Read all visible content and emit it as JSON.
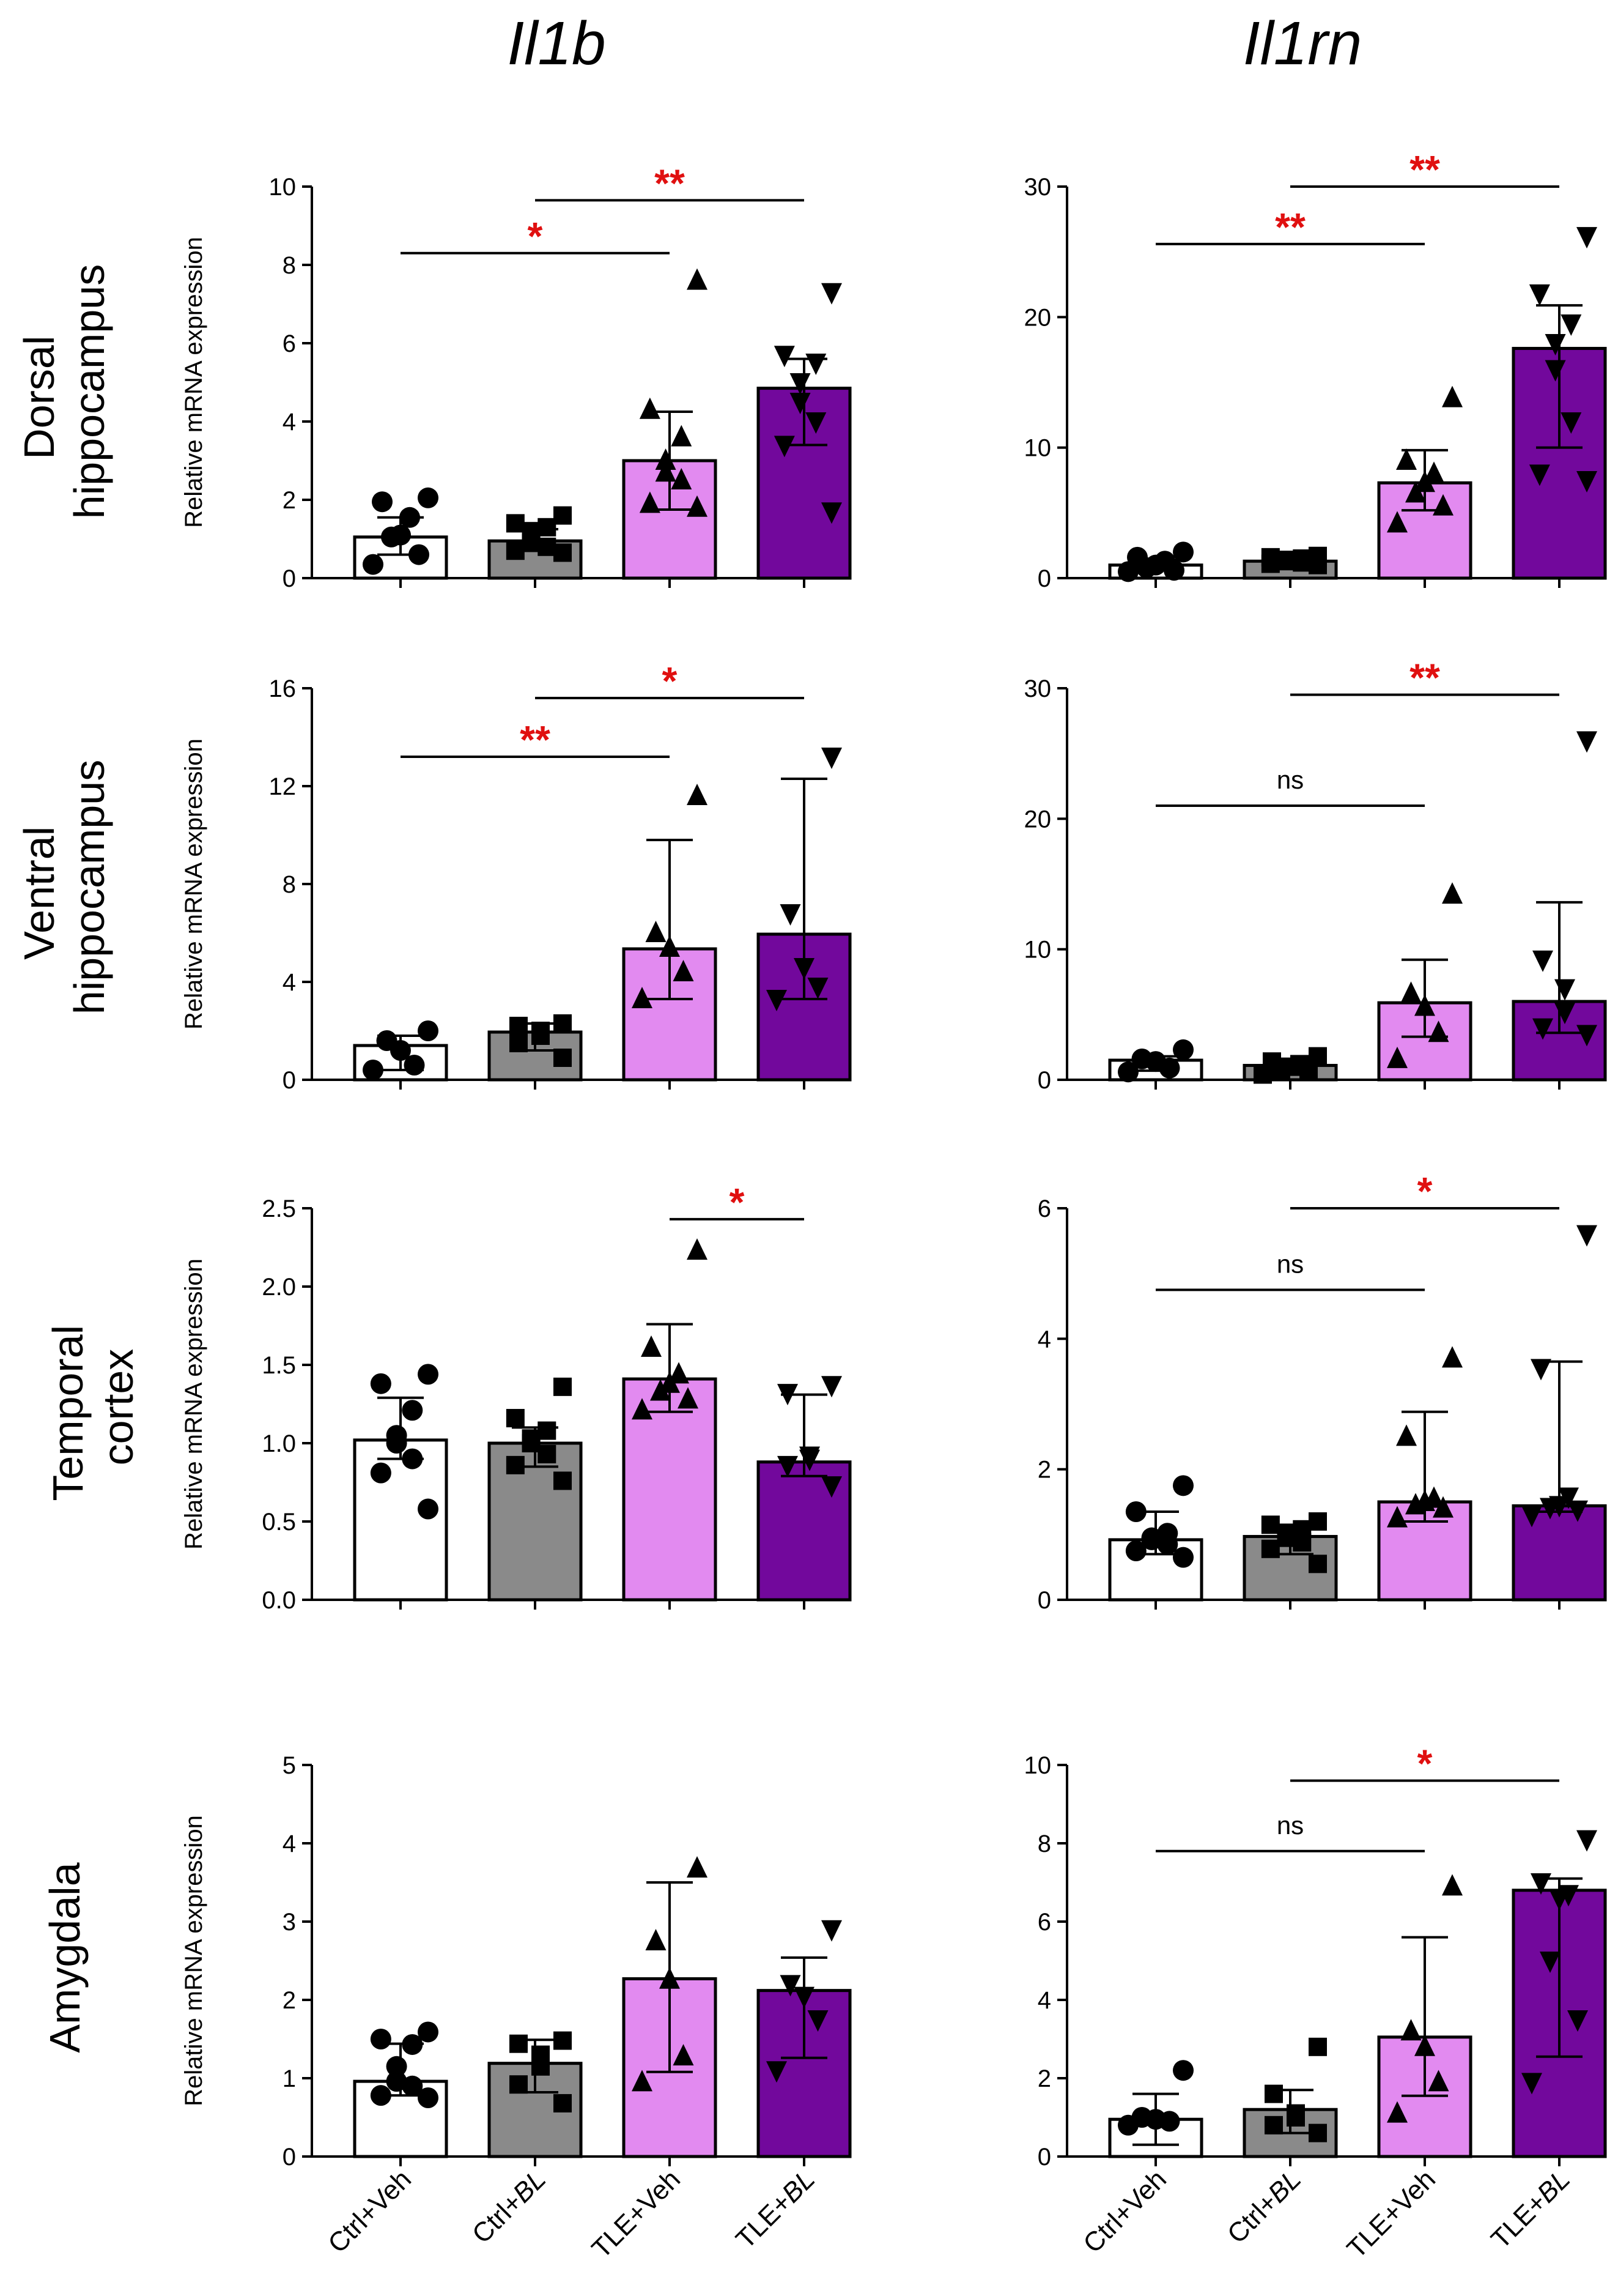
{
  "column_titles": [
    "Il1b",
    "Il1rn"
  ],
  "row_labels": [
    [
      "Dorsal",
      "hippocampus"
    ],
    [
      "Ventral",
      "hippocampus"
    ],
    [
      "Temporal",
      "cortex"
    ],
    [
      "Amygdala"
    ]
  ],
  "x_categories": [
    {
      "prefix": "Ctrl+",
      "suffix": "Veh",
      "italic_suffix": false
    },
    {
      "prefix": "Ctrl+",
      "suffix": "BL",
      "italic_suffix": true
    },
    {
      "prefix": "TLE+",
      "suffix": "Veh",
      "italic_suffix": false
    },
    {
      "prefix": "TLE+",
      "suffix": "BL",
      "italic_suffix": true
    }
  ],
  "colors": {
    "bars": [
      "#ffffff",
      "#8a8a8a",
      "#e28af0",
      "#72089c"
    ],
    "significance": "#e01010",
    "axis": "#000000"
  },
  "markers": [
    "circle",
    "square",
    "triangle-up",
    "triangle-down"
  ],
  "chart_data": [
    {
      "type": "bar",
      "row": 0,
      "col": 0,
      "gene": "Il1b",
      "region": "Dorsal hippocampus",
      "ylabel": "Relative mRNA expression",
      "ylim": [
        0,
        10
      ],
      "yticks": [
        0,
        2,
        4,
        6,
        8,
        10
      ],
      "ytick_labels": [
        "0",
        "2",
        "4",
        "6",
        "8",
        "10"
      ],
      "categories": [
        "Ctrl+Veh",
        "Ctrl+BL",
        "TLE+Veh",
        "TLE+BL"
      ],
      "means": [
        1.05,
        0.95,
        3.0,
        4.85
      ],
      "err_low": [
        0.6,
        0.7,
        1.75,
        3.4
      ],
      "err_high": [
        1.55,
        1.25,
        4.25,
        5.6
      ],
      "points": [
        [
          2.05,
          1.95,
          1.55,
          1.1,
          1.05,
          0.6,
          0.35
        ],
        [
          1.6,
          1.4,
          1.3,
          1.2,
          0.9,
          0.8,
          0.7,
          0.65
        ],
        [
          7.6,
          4.3,
          3.6,
          3.0,
          2.7,
          2.5,
          1.9,
          1.8
        ],
        [
          7.3,
          5.7,
          5.5,
          5.0,
          4.5,
          4.0,
          3.4,
          1.7
        ]
      ],
      "comparisons": [
        {
          "from": 0,
          "to": 2,
          "level": 8.3,
          "label": "*"
        },
        {
          "from": 1,
          "to": 3,
          "level": 9.65,
          "label": "**"
        }
      ]
    },
    {
      "type": "bar",
      "row": 0,
      "col": 1,
      "gene": "Il1rn",
      "region": "Dorsal hippocampus",
      "ylabel": "",
      "ylim": [
        0,
        30
      ],
      "yticks": [
        0,
        10,
        20,
        30
      ],
      "ytick_labels": [
        "0",
        "10",
        "20",
        "30"
      ],
      "categories": [
        "Ctrl+Veh",
        "Ctrl+BL",
        "TLE+Veh",
        "TLE+BL"
      ],
      "means": [
        1.0,
        1.3,
        7.3,
        17.6
      ],
      "err_low": [
        0.6,
        1.0,
        5.2,
        10.0
      ],
      "err_high": [
        1.4,
        1.6,
        9.8,
        20.9
      ],
      "points": [
        [
          2.0,
          1.6,
          1.3,
          1.0,
          0.8,
          0.6,
          0.5
        ],
        [
          1.7,
          1.6,
          1.5,
          1.4,
          1.3,
          1.2,
          1.1,
          1.0
        ],
        [
          13.8,
          9.0,
          8.0,
          7.3,
          6.5,
          5.5,
          4.2
        ],
        [
          26.2,
          21.8,
          19.5,
          18.0,
          16.0,
          12.0,
          8.0,
          7.5
        ]
      ],
      "comparisons": [
        {
          "from": 0,
          "to": 2,
          "level": 25.6,
          "label": "**"
        },
        {
          "from": 1,
          "to": 3,
          "level": 30.0,
          "label": "**"
        }
      ]
    },
    {
      "type": "bar",
      "row": 1,
      "col": 0,
      "gene": "Il1b",
      "region": "Ventral hippocampus",
      "ylabel": "Relative mRNA expression",
      "ylim": [
        0,
        16
      ],
      "yticks": [
        0,
        4,
        8,
        12,
        16
      ],
      "ytick_labels": [
        "0",
        "4",
        "8",
        "12",
        "16"
      ],
      "categories": [
        "Ctrl+Veh",
        "Ctrl+BL",
        "TLE+Veh",
        "TLE+BL"
      ],
      "means": [
        1.4,
        1.95,
        5.35,
        5.95
      ],
      "err_low": [
        0.4,
        1.2,
        3.3,
        3.3
      ],
      "err_high": [
        1.8,
        2.3,
        9.8,
        12.3
      ],
      "points": [
        [
          2.0,
          1.6,
          1.2,
          0.6,
          0.4
        ],
        [
          2.3,
          2.2,
          2.0,
          1.8,
          1.5,
          0.9
        ],
        [
          11.6,
          6.0,
          5.4,
          4.4,
          3.3
        ],
        [
          13.2,
          6.8,
          4.6,
          3.8,
          3.3
        ]
      ],
      "comparisons": [
        {
          "from": 0,
          "to": 2,
          "level": 13.2,
          "label": "**"
        },
        {
          "from": 1,
          "to": 3,
          "level": 15.6,
          "label": "*"
        }
      ]
    },
    {
      "type": "bar",
      "row": 1,
      "col": 1,
      "gene": "Il1rn",
      "region": "Ventral hippocampus",
      "ylabel": "",
      "ylim": [
        0,
        30
      ],
      "yticks": [
        0,
        10,
        20,
        30
      ],
      "ytick_labels": [
        "0",
        "10",
        "20",
        "30"
      ],
      "categories": [
        "Ctrl+Veh",
        "Ctrl+BL",
        "TLE+Veh",
        "TLE+BL"
      ],
      "means": [
        1.5,
        1.1,
        5.9,
        6.0
      ],
      "err_low": [
        0.7,
        0.6,
        3.3,
        3.6
      ],
      "err_high": [
        1.8,
        1.6,
        9.2,
        13.6
      ],
      "points": [
        [
          2.3,
          1.6,
          1.4,
          0.9,
          0.6
        ],
        [
          1.8,
          1.4,
          1.2,
          1.0,
          0.8,
          0.6,
          0.4
        ],
        [
          14.2,
          6.6,
          5.6,
          3.6,
          1.6
        ],
        [
          26.0,
          9.2,
          7.0,
          5.2,
          4.0,
          3.5
        ]
      ],
      "comparisons": [
        {
          "from": 0,
          "to": 2,
          "level": 21.0,
          "label": "ns"
        },
        {
          "from": 1,
          "to": 3,
          "level": 29.5,
          "label": "**"
        }
      ]
    },
    {
      "type": "bar",
      "row": 2,
      "col": 0,
      "gene": "Il1b",
      "region": "Temporal cortex",
      "ylabel": "Relative mRNA expression",
      "ylim": [
        0,
        2.5
      ],
      "yticks": [
        0,
        0.5,
        1.0,
        1.5,
        2.0,
        2.5
      ],
      "ytick_labels": [
        "0.0",
        "0.5",
        "1.0",
        "1.5",
        "2.0",
        "2.5"
      ],
      "categories": [
        "Ctrl+Veh",
        "Ctrl+BL",
        "TLE+Veh",
        "TLE+BL"
      ],
      "means": [
        1.02,
        1.0,
        1.41,
        0.88
      ],
      "err_low": [
        0.9,
        0.85,
        1.2,
        0.79
      ],
      "err_high": [
        1.29,
        1.1,
        1.76,
        1.31
      ],
      "points": [
        [
          1.44,
          1.38,
          1.21,
          1.05,
          1.0,
          0.9,
          0.81,
          0.58
        ],
        [
          1.36,
          1.16,
          1.08,
          1.03,
          1.0,
          0.93,
          0.86,
          0.76
        ],
        [
          2.23,
          1.61,
          1.44,
          1.38,
          1.33,
          1.28,
          1.21
        ],
        [
          1.37,
          1.32,
          0.92,
          0.9,
          0.86,
          0.73
        ]
      ],
      "comparisons": [
        {
          "from": 2,
          "to": 3,
          "level": 2.43,
          "label": "*"
        }
      ]
    },
    {
      "type": "bar",
      "row": 2,
      "col": 1,
      "gene": "Il1rn",
      "region": "Temporal cortex",
      "ylabel": "",
      "ylim": [
        0,
        6
      ],
      "yticks": [
        0,
        2,
        4,
        6
      ],
      "ytick_labels": [
        "0",
        "2",
        "4",
        "6"
      ],
      "categories": [
        "Ctrl+Veh",
        "Ctrl+BL",
        "TLE+Veh",
        "TLE+BL"
      ],
      "means": [
        0.92,
        0.97,
        1.5,
        1.44
      ],
      "err_low": [
        0.7,
        0.7,
        1.2,
        1.35
      ],
      "err_high": [
        1.35,
        1.15,
        2.88,
        3.65
      ],
      "points": [
        [
          1.75,
          1.35,
          1.02,
          0.95,
          0.92,
          0.85,
          0.75,
          0.65
        ],
        [
          1.2,
          1.15,
          1.08,
          1.0,
          0.95,
          0.88,
          0.78,
          0.55
        ],
        [
          3.7,
          2.5,
          1.55,
          1.5,
          1.45,
          1.4,
          1.25
        ],
        [
          5.6,
          3.55,
          1.58,
          1.45,
          1.42,
          1.38,
          1.3
        ]
      ],
      "comparisons": [
        {
          "from": 0,
          "to": 2,
          "level": 4.75,
          "label": "ns"
        },
        {
          "from": 1,
          "to": 3,
          "level": 6.0,
          "label": "*"
        }
      ]
    },
    {
      "type": "bar",
      "row": 3,
      "col": 0,
      "gene": "Il1b",
      "region": "Amygdala",
      "ylabel": "Relative mRNA expression",
      "ylim": [
        0,
        5
      ],
      "yticks": [
        0,
        1,
        2,
        3,
        4,
        5
      ],
      "ytick_labels": [
        "0",
        "1",
        "2",
        "3",
        "4",
        "5"
      ],
      "categories": [
        "Ctrl+Veh",
        "Ctrl+BL",
        "TLE+Veh",
        "TLE+BL"
      ],
      "means": [
        0.96,
        1.19,
        2.27,
        2.12
      ],
      "err_low": [
        0.78,
        0.82,
        1.08,
        1.26
      ],
      "err_high": [
        1.44,
        1.49,
        3.5,
        2.54
      ],
      "points": [
        [
          1.59,
          1.5,
          1.43,
          1.15,
          0.96,
          0.9,
          0.78,
          0.75
        ],
        [
          1.48,
          1.44,
          1.3,
          1.15,
          0.92,
          0.68
        ],
        [
          3.68,
          2.75,
          2.26,
          1.28,
          0.95
        ],
        [
          2.9,
          2.2,
          2.05,
          1.75,
          1.1
        ]
      ],
      "comparisons": []
    },
    {
      "type": "bar",
      "row": 3,
      "col": 1,
      "gene": "Il1rn",
      "region": "Amygdala",
      "ylabel": "",
      "ylim": [
        0,
        10
      ],
      "yticks": [
        0,
        2,
        4,
        6,
        8,
        10
      ],
      "ytick_labels": [
        "0",
        "2",
        "4",
        "6",
        "8",
        "10"
      ],
      "categories": [
        "Ctrl+Veh",
        "Ctrl+BL",
        "TLE+Veh",
        "TLE+BL"
      ],
      "means": [
        0.95,
        1.2,
        3.05,
        6.8
      ],
      "err_low": [
        0.3,
        0.6,
        1.55,
        2.55
      ],
      "err_high": [
        1.6,
        1.7,
        5.6,
        7.1
      ],
      "points": [
        [
          2.2,
          1.0,
          0.95,
          0.9,
          0.8
        ],
        [
          2.8,
          1.6,
          1.1,
          1.0,
          0.8,
          0.6
        ],
        [
          6.9,
          3.2,
          2.8,
          1.9,
          1.1
        ],
        [
          8.1,
          7.0,
          6.7,
          6.6,
          5.0,
          3.5,
          1.9
        ]
      ],
      "comparisons": [
        {
          "from": 0,
          "to": 2,
          "level": 7.8,
          "label": "ns"
        },
        {
          "from": 1,
          "to": 3,
          "level": 9.6,
          "label": "*"
        }
      ]
    }
  ]
}
